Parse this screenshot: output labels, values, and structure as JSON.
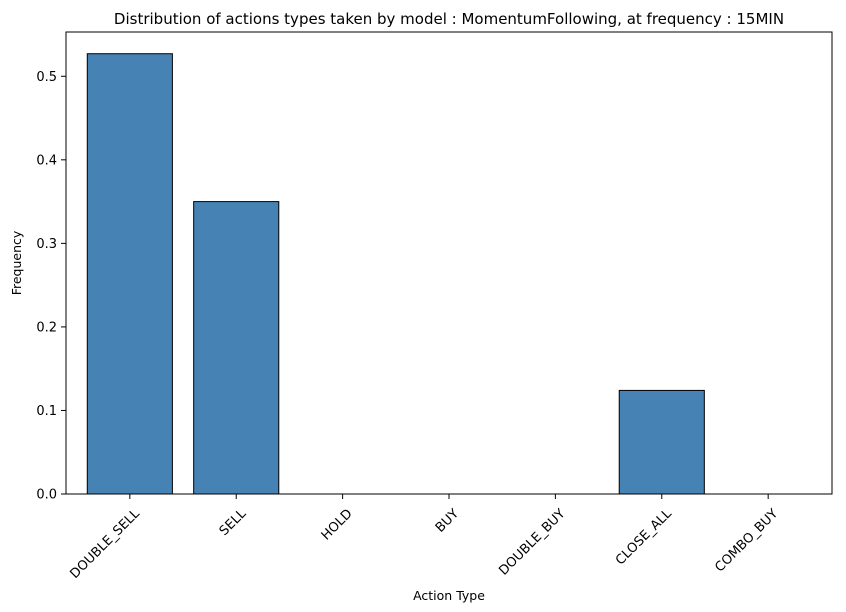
{
  "chart_data": {
    "type": "bar",
    "title": "Distribution of actions types taken by model : MomentumFollowing, at frequency : 15MIN",
    "xlabel": "Action Type",
    "ylabel": "Frequency",
    "categories": [
      "DOUBLE_SELL",
      "SELL",
      "HOLD",
      "BUY",
      "DOUBLE_BUY",
      "CLOSE_ALL",
      "COMBO_BUY"
    ],
    "values": [
      0.527,
      0.35,
      0.0,
      0.0,
      0.0,
      0.124,
      0.0
    ],
    "ylim": [
      0,
      0.553
    ],
    "yticks": [
      "0.0",
      "0.1",
      "0.2",
      "0.3",
      "0.4",
      "0.5"
    ],
    "grid": false,
    "legend": false,
    "colors": {
      "bar_fill": "#4682B4",
      "bar_edge": "#000000"
    }
  }
}
